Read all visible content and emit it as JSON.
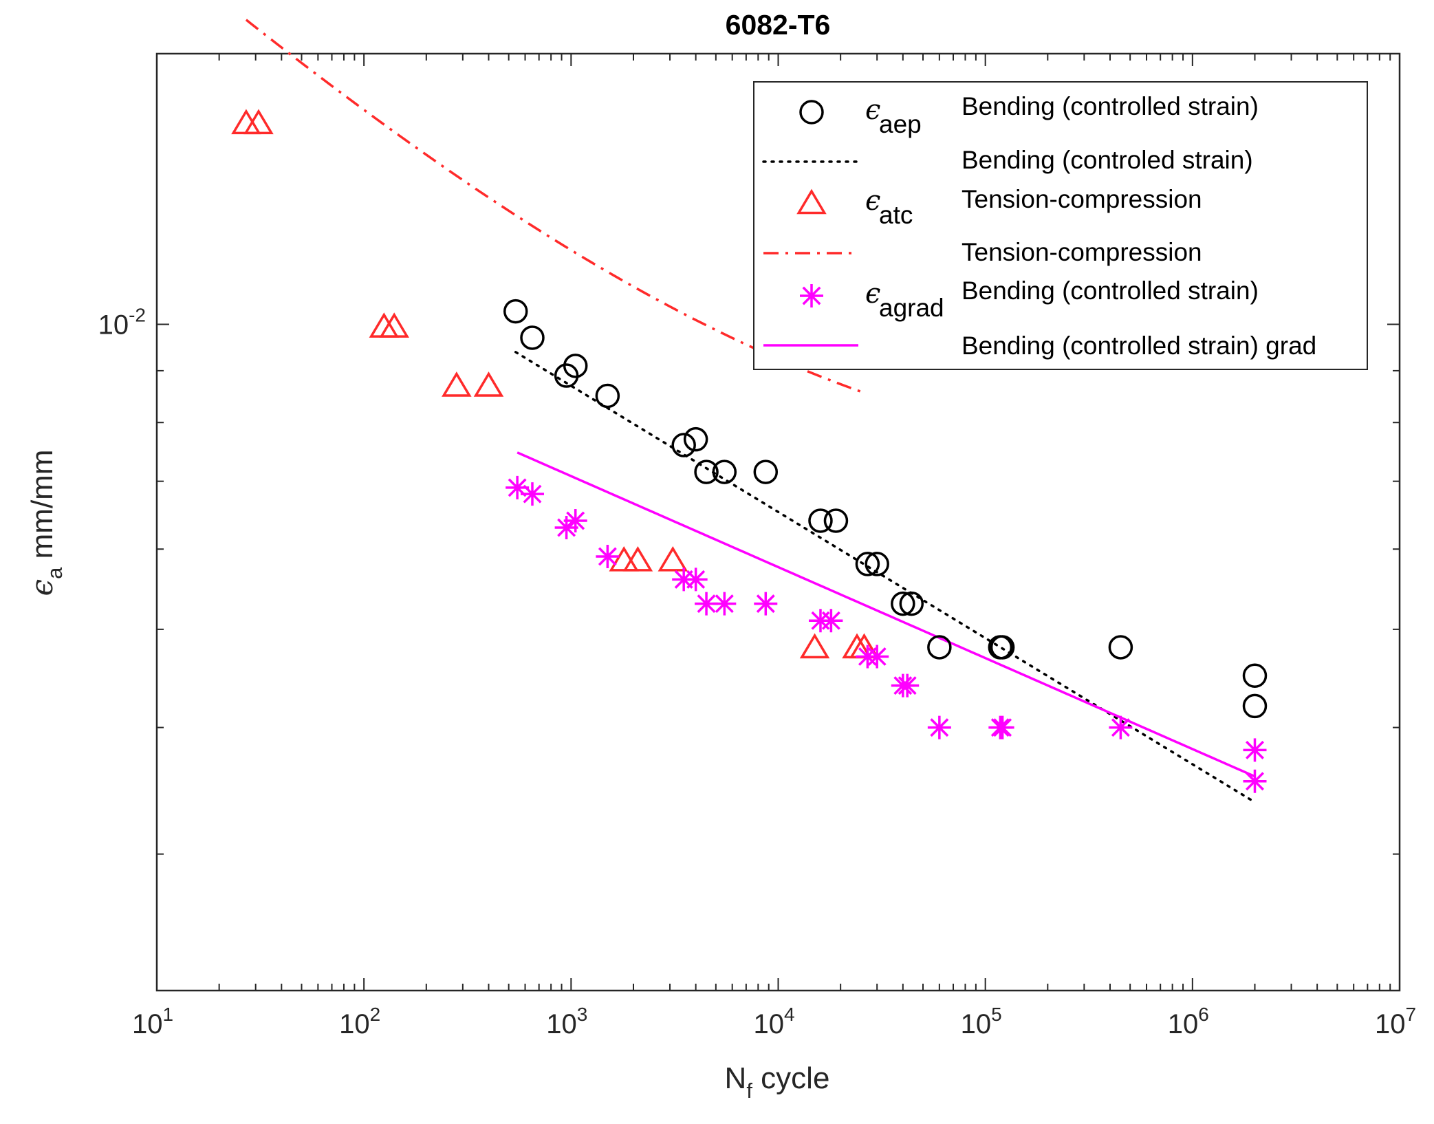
{
  "chart_data": {
    "type": "scatter",
    "title": "6082-T6",
    "xlabel": {
      "main": "N",
      "sub": "f",
      "rest": " cycle"
    },
    "ylabel": {
      "main": "ϵ",
      "sub": "a",
      "rest": " mm/mm"
    },
    "xscale": "log",
    "yscale": "log",
    "xlim": [
      10,
      10000000
    ],
    "ylim": [
      0.0022,
      0.0185
    ],
    "x_ticks": [
      {
        "base": "10",
        "exp": "1"
      },
      {
        "base": "10",
        "exp": "2"
      },
      {
        "base": "10",
        "exp": "3"
      },
      {
        "base": "10",
        "exp": "4"
      },
      {
        "base": "10",
        "exp": "5"
      },
      {
        "base": "10",
        "exp": "6"
      },
      {
        "base": "10",
        "exp": "7"
      }
    ],
    "y_ticks": [
      {
        "base": "10",
        "exp": "-2",
        "value": 0.01
      }
    ],
    "legend_position": "top-right",
    "legend": [
      {
        "symbol": "ϵ",
        "sub": "aep",
        "label": "Bending (controlled strain)",
        "marker": "circle",
        "color": "#000000"
      },
      {
        "symbol": "",
        "sub": "",
        "label": "Bending (controled strain)",
        "line": "dotted",
        "color": "#000000"
      },
      {
        "symbol": "ϵ",
        "sub": "atc",
        "label": "Tension-compression",
        "marker": "triangle",
        "color": "#ff2a2a"
      },
      {
        "symbol": "",
        "sub": "",
        "label": "Tension-compression",
        "line": "dashdot",
        "color": "#ff2a2a"
      },
      {
        "symbol": "ϵ",
        "sub": "agrad",
        "label": "Bending (controlled strain)",
        "marker": "asterisk",
        "color": "#ff00ff"
      },
      {
        "symbol": "",
        "sub": "",
        "label": "Bending (controlled strain) grad",
        "line": "solid",
        "color": "#ff00ff"
      }
    ],
    "series": [
      {
        "name": "ϵaep Bending (controlled strain)",
        "marker": "circle",
        "color": "#000000",
        "points": [
          [
            540,
            0.0103
          ],
          [
            650,
            0.0097
          ],
          [
            950,
            0.0089
          ],
          [
            1050,
            0.0091
          ],
          [
            1500,
            0.0085
          ],
          [
            3500,
            0.0076
          ],
          [
            4000,
            0.0077
          ],
          [
            4500,
            0.00715
          ],
          [
            5500,
            0.00715
          ],
          [
            8700,
            0.00715
          ],
          [
            16000,
            0.0064
          ],
          [
            19000,
            0.0064
          ],
          [
            27000,
            0.0058
          ],
          [
            30000,
            0.0058
          ],
          [
            40000,
            0.0053
          ],
          [
            44000,
            0.0053
          ],
          [
            60000,
            0.0048
          ],
          [
            118000,
            0.0048
          ],
          [
            121000,
            0.0048
          ],
          [
            450000,
            0.0048
          ],
          [
            2000000,
            0.0045
          ],
          [
            2000000,
            0.0042
          ]
        ]
      },
      {
        "name": "ϵatc Tension-compression",
        "marker": "triangle",
        "color": "#ff2a2a",
        "points": [
          [
            27,
            0.0158
          ],
          [
            31,
            0.0158
          ],
          [
            125,
            0.00995
          ],
          [
            140,
            0.00995
          ],
          [
            280,
            0.0087
          ],
          [
            400,
            0.0087
          ],
          [
            1800,
            0.00585
          ],
          [
            2100,
            0.00585
          ],
          [
            3100,
            0.00585
          ],
          [
            15000,
            0.0048
          ],
          [
            24000,
            0.0048
          ],
          [
            26000,
            0.0048
          ]
        ]
      },
      {
        "name": "ϵagrad Bending (controlled strain)",
        "marker": "asterisk",
        "color": "#ff00ff",
        "points": [
          [
            550,
            0.0069
          ],
          [
            650,
            0.0068
          ],
          [
            950,
            0.0063
          ],
          [
            1050,
            0.0064
          ],
          [
            1500,
            0.0059
          ],
          [
            3500,
            0.0056
          ],
          [
            4000,
            0.0056
          ],
          [
            4500,
            0.0053
          ],
          [
            5500,
            0.0053
          ],
          [
            8700,
            0.0053
          ],
          [
            16000,
            0.0051
          ],
          [
            18000,
            0.0051
          ],
          [
            27000,
            0.0047
          ],
          [
            30000,
            0.0047
          ],
          [
            40000,
            0.0044
          ],
          [
            42000,
            0.0044
          ],
          [
            60000,
            0.004
          ],
          [
            118000,
            0.004
          ],
          [
            121000,
            0.004
          ],
          [
            450000,
            0.004
          ],
          [
            2000000,
            0.0038
          ],
          [
            2000000,
            0.00354
          ]
        ]
      }
    ],
    "fits": [
      {
        "name": "Bending (controled strain)",
        "style": "dotted",
        "color": "#000000",
        "x_range": [
          540,
          2000000
        ],
        "coef": 0.02055,
        "exp": -0.1245
      },
      {
        "name": "Tension-compression",
        "style": "dashdot",
        "color": "#ff2a2a",
        "x_range": [
          27,
          26000
        ],
        "coef": 0.0334,
        "exp": -0.1905,
        "elastic_coef": 0.00165,
        "elastic_exp": 0.0806
      },
      {
        "name": "Bending (controlled strain) grad",
        "style": "solid",
        "color": "#ff00ff",
        "x_range": [
          550,
          2000000
        ],
        "coef": 0.01317,
        "exp": -0.0898
      }
    ]
  }
}
